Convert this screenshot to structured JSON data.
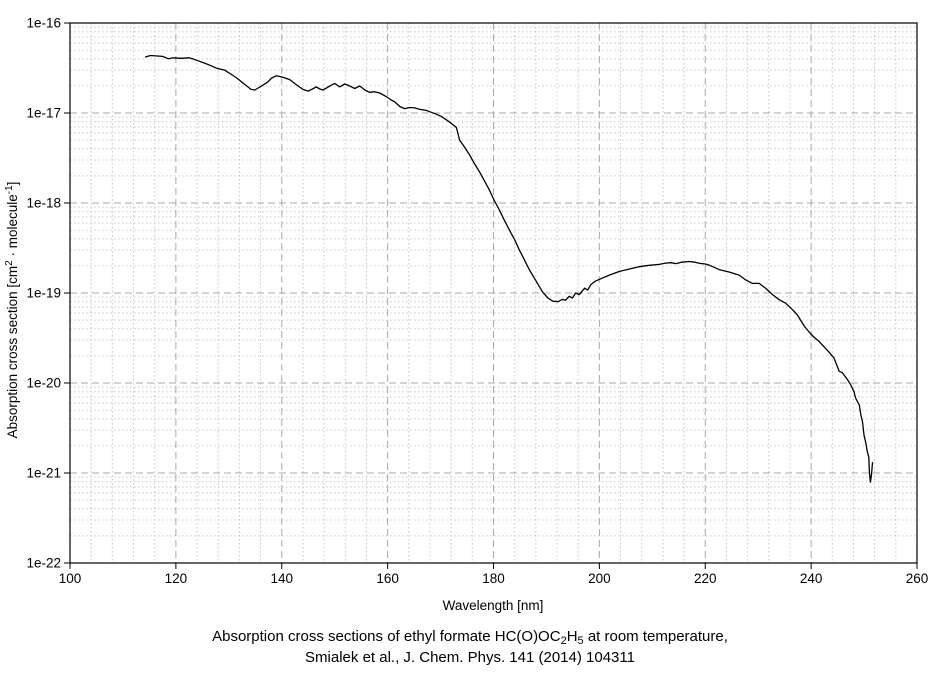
{
  "chart_data": {
    "type": "line",
    "xlabel": "Wavelength [nm]",
    "ylabel_parts": [
      {
        "text": "Absorption cross section [cm",
        "style": "normal"
      },
      {
        "text": "2",
        "style": "sup"
      },
      {
        "text": " · molecule",
        "style": "normal"
      },
      {
        "text": "-1",
        "style": "sup"
      },
      {
        "text": "]",
        "style": "normal"
      }
    ],
    "title_parts": [
      {
        "text": "Absorption cross sections of ethyl formate HC(O)OC",
        "style": "normal"
      },
      {
        "text": "2",
        "style": "sub"
      },
      {
        "text": "H",
        "style": "normal"
      },
      {
        "text": "5",
        "style": "sub"
      },
      {
        "text": " at room temperature,",
        "style": "normal"
      }
    ],
    "caption_line2": "Smialek et al., J. Chem. Phys. 141 (2014) 104311",
    "xlim": [
      100,
      260
    ],
    "x_major_ticks": [
      100,
      120,
      140,
      160,
      180,
      200,
      220,
      240,
      260
    ],
    "x_minor_step_nm": 4,
    "ylim": [
      1e-22,
      1e-16
    ],
    "y_tick_exponents": [
      -16,
      -17,
      -18,
      -19,
      -20,
      -21,
      -22
    ],
    "y_tick_labels": [
      "1e-16",
      "1e-17",
      "1e-18",
      "1e-19",
      "1e-20",
      "1e-21",
      "1e-22"
    ],
    "grid": {
      "major_color": "#a9a9a9",
      "minor_color": "#c6c6c6",
      "grid_on": true
    },
    "line_color": "#000000",
    "background_color": "#ffffff",
    "legend": "none",
    "series": [
      {
        "name": "ethyl formate absorption cross section",
        "points": [
          [
            114.3,
            4.2e-17
          ],
          [
            115.2,
            4.35e-17
          ],
          [
            116.5,
            4.3e-17
          ],
          [
            117.5,
            4.25e-17
          ],
          [
            118.6,
            4e-17
          ],
          [
            119.5,
            4.1e-17
          ],
          [
            121.0,
            4.05e-17
          ],
          [
            122.5,
            4.1e-17
          ],
          [
            123.4,
            3.95e-17
          ],
          [
            124.2,
            3.8e-17
          ],
          [
            125.3,
            3.6e-17
          ],
          [
            126.4,
            3.4e-17
          ],
          [
            127.7,
            3.15e-17
          ],
          [
            129.2,
            3e-17
          ],
          [
            130.2,
            2.75e-17
          ],
          [
            131.5,
            2.45e-17
          ],
          [
            132.7,
            2.15e-17
          ],
          [
            133.6,
            1.95e-17
          ],
          [
            134.2,
            1.83e-17
          ],
          [
            134.9,
            1.8e-17
          ],
          [
            135.7,
            1.92e-17
          ],
          [
            136.5,
            2.05e-17
          ],
          [
            137.3,
            2.2e-17
          ],
          [
            138.1,
            2.45e-17
          ],
          [
            139.0,
            2.6e-17
          ],
          [
            140.2,
            2.5e-17
          ],
          [
            141.5,
            2.35e-17
          ],
          [
            142.8,
            2.05e-17
          ],
          [
            144.0,
            1.83e-17
          ],
          [
            145.0,
            1.75e-17
          ],
          [
            145.8,
            1.85e-17
          ],
          [
            146.5,
            1.95e-17
          ],
          [
            147.2,
            1.85e-17
          ],
          [
            147.8,
            1.8e-17
          ],
          [
            148.5,
            1.9e-17
          ],
          [
            149.1,
            2e-17
          ],
          [
            150.0,
            2.13e-17
          ],
          [
            150.9,
            1.95e-17
          ],
          [
            151.9,
            2.1e-17
          ],
          [
            152.8,
            2e-17
          ],
          [
            153.8,
            1.87e-17
          ],
          [
            154.7,
            2e-17
          ],
          [
            155.7,
            1.8e-17
          ],
          [
            156.6,
            1.7e-17
          ],
          [
            157.5,
            1.72e-17
          ],
          [
            158.5,
            1.67e-17
          ],
          [
            159.7,
            1.53e-17
          ],
          [
            160.7,
            1.39e-17
          ],
          [
            161.3,
            1.34e-17
          ],
          [
            162.3,
            1.18e-17
          ],
          [
            163.2,
            1.12e-17
          ],
          [
            164.2,
            1.15e-17
          ],
          [
            165.1,
            1.14e-17
          ],
          [
            166.0,
            1.1e-17
          ],
          [
            167.3,
            1.07e-17
          ],
          [
            168.2,
            1.02e-17
          ],
          [
            169.2,
            9.7e-18
          ],
          [
            170.1,
            9.2e-18
          ],
          [
            171.1,
            8.4e-18
          ],
          [
            172.0,
            7.7e-18
          ],
          [
            173.0,
            6.9e-18
          ],
          [
            173.6,
            5e-18
          ],
          [
            174.5,
            4.2e-18
          ],
          [
            175.5,
            3.4e-18
          ],
          [
            176.4,
            2.75e-18
          ],
          [
            177.4,
            2.2e-18
          ],
          [
            178.3,
            1.75e-18
          ],
          [
            179.2,
            1.4e-18
          ],
          [
            180.1,
            1.08e-18
          ],
          [
            181.1,
            8.4e-19
          ],
          [
            182.0,
            6.5e-19
          ],
          [
            183.0,
            5e-19
          ],
          [
            184.0,
            3.9e-19
          ],
          [
            184.9,
            3e-19
          ],
          [
            185.9,
            2.3e-19
          ],
          [
            186.8,
            1.8e-19
          ],
          [
            188.1,
            1.34e-19
          ],
          [
            189.3,
            1.02e-19
          ],
          [
            190.3,
            8.8e-20
          ],
          [
            191.2,
            8.1e-20
          ],
          [
            192.2,
            8e-20
          ],
          [
            193.0,
            8.5e-20
          ],
          [
            193.6,
            8.3e-20
          ],
          [
            194.3,
            9.2e-20
          ],
          [
            194.9,
            8.8e-20
          ],
          [
            195.5,
            1e-19
          ],
          [
            196.2,
            9.6e-20
          ],
          [
            197.2,
            1.13e-19
          ],
          [
            197.8,
            1.08e-19
          ],
          [
            198.4,
            1.24e-19
          ],
          [
            199.1,
            1.34e-19
          ],
          [
            200.0,
            1.42e-19
          ],
          [
            201.9,
            1.58e-19
          ],
          [
            203.8,
            1.74e-19
          ],
          [
            205.7,
            1.85e-19
          ],
          [
            207.5,
            1.96e-19
          ],
          [
            209.4,
            2.03e-19
          ],
          [
            211.3,
            2.08e-19
          ],
          [
            212.5,
            2.15e-19
          ],
          [
            213.5,
            2.17e-19
          ],
          [
            214.5,
            2.12e-19
          ],
          [
            215.5,
            2.2e-19
          ],
          [
            217.0,
            2.24e-19
          ],
          [
            218.0,
            2.2e-19
          ],
          [
            218.9,
            2.14e-19
          ],
          [
            220.0,
            2.1e-19
          ],
          [
            220.8,
            2.03e-19
          ],
          [
            221.7,
            1.93e-19
          ],
          [
            222.6,
            1.82e-19
          ],
          [
            224.5,
            1.71e-19
          ],
          [
            226.4,
            1.58e-19
          ],
          [
            227.7,
            1.39e-19
          ],
          [
            228.9,
            1.28e-19
          ],
          [
            230.2,
            1.28e-19
          ],
          [
            231.5,
            1.12e-19
          ],
          [
            232.7,
            9.6e-20
          ],
          [
            234.0,
            8.4e-20
          ],
          [
            235.2,
            7.7e-20
          ],
          [
            236.5,
            6.5e-20
          ],
          [
            237.4,
            5.7e-20
          ],
          [
            238.7,
            4.3e-20
          ],
          [
            239.6,
            3.7e-20
          ],
          [
            240.6,
            3.2e-20
          ],
          [
            241.5,
            2.9e-20
          ],
          [
            242.5,
            2.5e-20
          ],
          [
            243.4,
            2.2e-20
          ],
          [
            244.3,
            1.9e-20
          ],
          [
            245.3,
            1.35e-20
          ],
          [
            245.9,
            1.3e-20
          ],
          [
            246.9,
            1.08e-20
          ],
          [
            247.5,
            9.5e-21
          ],
          [
            248.1,
            8e-21
          ],
          [
            248.4,
            6.8e-21
          ],
          [
            249.1,
            5.7e-21
          ],
          [
            249.4,
            4.4e-21
          ],
          [
            249.7,
            3.7e-21
          ],
          [
            250.0,
            2.6e-21
          ],
          [
            250.3,
            2.2e-21
          ],
          [
            250.6,
            1.75e-21
          ],
          [
            250.9,
            1.5e-21
          ],
          [
            251.0,
            1.03e-21
          ],
          [
            251.2,
            7.9e-22
          ],
          [
            251.4,
            9.6e-22
          ],
          [
            251.6,
            1.3e-21
          ]
        ]
      }
    ]
  }
}
